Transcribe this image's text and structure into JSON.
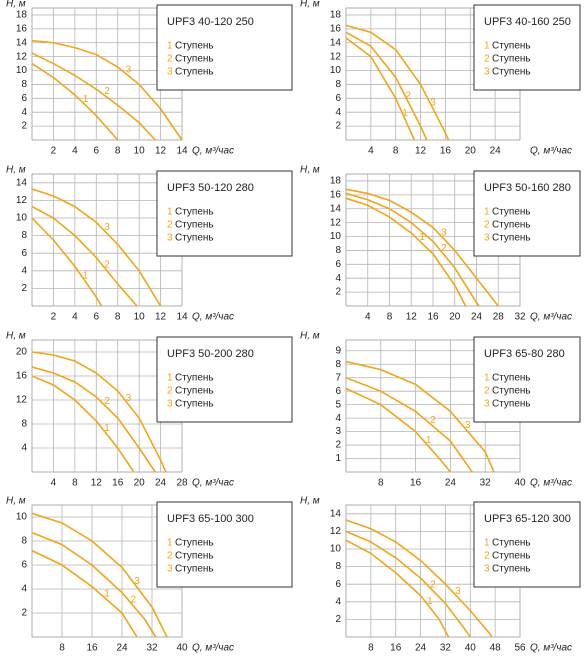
{
  "chart_data": [
    {
      "type": "line",
      "title": "UPF3 40-120 250",
      "y_label": "H, м",
      "x_label": "Q, м³/час",
      "xlim": [
        0,
        14
      ],
      "ylim": [
        0,
        19
      ],
      "xticks": [
        2,
        4,
        6,
        8,
        10,
        12,
        14
      ],
      "yticks": [
        2,
        4,
        6,
        8,
        10,
        12,
        14,
        16,
        18
      ],
      "grid": true,
      "series": [
        {
          "name": "1",
          "label": "Ступень",
          "color": "#f2a516",
          "x": [
            0,
            2,
            4,
            6,
            8
          ],
          "values": [
            11,
            9,
            6.5,
            3.5,
            0
          ]
        },
        {
          "name": "2",
          "label": "Ступень",
          "color": "#f2a516",
          "x": [
            0,
            2,
            4,
            6,
            8,
            10,
            11.5
          ],
          "values": [
            12.5,
            11,
            9.3,
            7.3,
            5,
            2.5,
            0
          ]
        },
        {
          "name": "3",
          "label": "Ступень",
          "color": "#f2a516",
          "x": [
            0,
            2,
            4,
            6,
            8,
            10,
            12,
            14
          ],
          "values": [
            14.3,
            14,
            13.3,
            12.3,
            10.5,
            8,
            4.5,
            0
          ]
        }
      ]
    },
    {
      "type": "line",
      "title": "UPF3 40-160 250",
      "y_label": "H, м",
      "x_label": "Q, м³/час",
      "xlim": [
        0,
        28
      ],
      "ylim": [
        0,
        19
      ],
      "xticks": [
        4,
        8,
        12,
        16,
        20,
        24
      ],
      "yticks": [
        2,
        4,
        6,
        8,
        10,
        12,
        14,
        16,
        18
      ],
      "grid": true,
      "series": [
        {
          "name": "1",
          "label": "Ступень",
          "color": "#f2a516",
          "x": [
            0,
            4,
            8,
            11
          ],
          "values": [
            14.7,
            12,
            6,
            0
          ]
        },
        {
          "name": "2",
          "label": "Ступень",
          "color": "#f2a516",
          "x": [
            0,
            4,
            8,
            12,
            13
          ],
          "values": [
            15.5,
            13.5,
            9,
            2,
            0
          ]
        },
        {
          "name": "3",
          "label": "Ступень",
          "color": "#f2a516",
          "x": [
            0,
            4,
            8,
            12,
            16,
            16.5
          ],
          "values": [
            16.5,
            15.5,
            13,
            8,
            1,
            0
          ]
        }
      ]
    },
    {
      "type": "line",
      "title": "UPF3 50-120 280",
      "y_label": "H, м",
      "x_label": "Q, м³/час",
      "xlim": [
        0,
        14
      ],
      "ylim": [
        0,
        15
      ],
      "xticks": [
        2,
        4,
        6,
        8,
        10,
        12,
        14
      ],
      "yticks": [
        2,
        4,
        6,
        8,
        10,
        12,
        14
      ],
      "grid": true,
      "series": [
        {
          "name": "1",
          "label": "Ступень",
          "color": "#f2a516",
          "x": [
            0,
            2,
            4,
            6,
            6.5
          ],
          "values": [
            10,
            7.5,
            4.5,
            1,
            0
          ]
        },
        {
          "name": "2",
          "label": "Ступень",
          "color": "#f2a516",
          "x": [
            0,
            2,
            4,
            6,
            8,
            9.8
          ],
          "values": [
            11.3,
            10,
            8,
            5.5,
            2.5,
            0
          ]
        },
        {
          "name": "3",
          "label": "Ступень",
          "color": "#f2a516",
          "x": [
            0,
            2,
            4,
            6,
            8,
            10,
            12
          ],
          "values": [
            13.3,
            12.5,
            11.3,
            9.5,
            7,
            4,
            0
          ]
        }
      ]
    },
    {
      "type": "line",
      "title": "UPF3 50-160 280",
      "y_label": "H, м",
      "x_label": "Q, м³/час",
      "xlim": [
        0,
        32
      ],
      "ylim": [
        0,
        19
      ],
      "xticks": [
        4,
        8,
        12,
        16,
        20,
        24,
        28,
        32
      ],
      "yticks": [
        2,
        4,
        6,
        8,
        10,
        12,
        14,
        16,
        18
      ],
      "grid": true,
      "series": [
        {
          "name": "1",
          "label": "Ступень",
          "color": "#f2a516",
          "x": [
            0,
            4,
            8,
            12,
            16,
            20,
            22
          ],
          "values": [
            15.5,
            14.5,
            12.8,
            10.5,
            7.5,
            3,
            0
          ]
        },
        {
          "name": "2",
          "label": "Ступень",
          "color": "#f2a516",
          "x": [
            0,
            4,
            8,
            12,
            16,
            20,
            24,
            24.5
          ],
          "values": [
            16.2,
            15.3,
            14,
            12,
            9.3,
            5.5,
            0.5,
            0
          ]
        },
        {
          "name": "3",
          "label": "Ступень",
          "color": "#f2a516",
          "x": [
            0,
            4,
            8,
            12,
            16,
            20,
            24,
            28
          ],
          "values": [
            16.8,
            16.2,
            15.2,
            13.5,
            11.3,
            8,
            4,
            0
          ]
        }
      ]
    },
    {
      "type": "line",
      "title": "UPF3 50-200 280",
      "y_label": "H, м",
      "x_label": "Q, м³/час",
      "xlim": [
        0,
        28
      ],
      "ylim": [
        0,
        22
      ],
      "xticks": [
        4,
        8,
        12,
        16,
        20,
        24,
        28
      ],
      "yticks": [
        4,
        8,
        12,
        16,
        20
      ],
      "grid": true,
      "series": [
        {
          "name": "1",
          "label": "Ступень",
          "color": "#f2a516",
          "x": [
            0,
            4,
            8,
            12,
            16,
            19
          ],
          "values": [
            16,
            14.5,
            12,
            8.5,
            4,
            0
          ]
        },
        {
          "name": "2",
          "label": "Ступень",
          "color": "#f2a516",
          "x": [
            0,
            4,
            8,
            12,
            16,
            20,
            23
          ],
          "values": [
            17.5,
            16.5,
            15,
            12.5,
            9,
            4,
            0
          ]
        },
        {
          "name": "3",
          "label": "Ступень",
          "color": "#f2a516",
          "x": [
            0,
            4,
            8,
            12,
            16,
            20,
            24,
            25
          ],
          "values": [
            20,
            19.5,
            18.5,
            16.5,
            13.5,
            9,
            2,
            0
          ]
        }
      ]
    },
    {
      "type": "line",
      "title": "UPF3 65-80 280",
      "y_label": "H, м",
      "x_label": "Q, м³/час",
      "xlim": [
        0,
        40
      ],
      "ylim": [
        0,
        9.8
      ],
      "xticks": [
        8,
        16,
        24,
        32,
        40
      ],
      "yticks": [
        1,
        2,
        3,
        4,
        5,
        6,
        7,
        8,
        9
      ],
      "grid": true,
      "series": [
        {
          "name": "1",
          "label": "Ступень",
          "color": "#f2a516",
          "x": [
            0,
            8,
            16,
            22,
            24
          ],
          "values": [
            6.2,
            5,
            3,
            0.8,
            0
          ]
        },
        {
          "name": "2",
          "label": "Ступень",
          "color": "#f2a516",
          "x": [
            0,
            8,
            16,
            24,
            29
          ],
          "values": [
            7,
            6,
            4.5,
            2.3,
            0
          ]
        },
        {
          "name": "3",
          "label": "Ступень",
          "color": "#f2a516",
          "x": [
            0,
            8,
            16,
            24,
            32,
            34
          ],
          "values": [
            8.2,
            7.6,
            6.5,
            4.5,
            1.5,
            0
          ]
        }
      ]
    },
    {
      "type": "line",
      "title": "UPF3 65-100 300",
      "y_label": "H, м",
      "x_label": "Q, м³/час",
      "xlim": [
        0,
        40
      ],
      "ylim": [
        0,
        11
      ],
      "xticks": [
        8,
        16,
        24,
        32,
        40
      ],
      "yticks": [
        2,
        4,
        6,
        8,
        10
      ],
      "grid": true,
      "series": [
        {
          "name": "1",
          "label": "Ступень",
          "color": "#f2a516",
          "x": [
            0,
            8,
            16,
            24,
            28
          ],
          "values": [
            7.2,
            6,
            4.2,
            2,
            0
          ]
        },
        {
          "name": "2",
          "label": "Ступень",
          "color": "#f2a516",
          "x": [
            0,
            8,
            16,
            24,
            30,
            33
          ],
          "values": [
            8.7,
            7.7,
            6,
            3.7,
            1.5,
            0
          ]
        },
        {
          "name": "3",
          "label": "Ступень",
          "color": "#f2a516",
          "x": [
            0,
            8,
            16,
            24,
            32,
            36
          ],
          "values": [
            10.3,
            9.5,
            8,
            5.8,
            2.5,
            0
          ]
        }
      ]
    },
    {
      "type": "line",
      "title": "UPF3 65-120 300",
      "y_label": "H, м",
      "x_label": "Q, м³/час",
      "xlim": [
        0,
        56
      ],
      "ylim": [
        0,
        15
      ],
      "xticks": [
        8,
        16,
        24,
        32,
        40,
        48,
        56
      ],
      "yticks": [
        2,
        4,
        6,
        8,
        10,
        12,
        14
      ],
      "grid": true,
      "series": [
        {
          "name": "1",
          "label": "Ступень",
          "color": "#f2a516",
          "x": [
            0,
            8,
            16,
            24,
            30,
            33
          ],
          "values": [
            11,
            9.5,
            7.3,
            4.7,
            2,
            0
          ]
        },
        {
          "name": "2",
          "label": "Ступень",
          "color": "#f2a516",
          "x": [
            0,
            8,
            16,
            24,
            32,
            38,
            40
          ],
          "values": [
            12,
            10.8,
            9,
            6.7,
            3.8,
            1,
            0
          ]
        },
        {
          "name": "3",
          "label": "Ступень",
          "color": "#f2a516",
          "x": [
            0,
            8,
            16,
            24,
            32,
            40,
            46,
            47
          ],
          "values": [
            13.3,
            12.3,
            10.8,
            8.7,
            6,
            3,
            0.5,
            0
          ]
        }
      ]
    }
  ]
}
